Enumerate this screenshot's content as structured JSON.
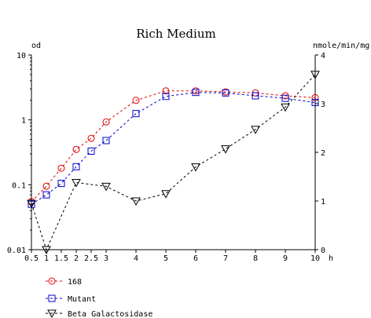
{
  "chart_data": {
    "type": "line",
    "title": "Rich Medium",
    "xlabel": "h",
    "ylabel_left": "od",
    "ylabel_right": "nmole/min/mg",
    "x_ticks": [
      "0.5",
      "1",
      "1.5",
      "2",
      "2.5",
      "3",
      "4",
      "5",
      "6",
      "7",
      "8",
      "9",
      "10"
    ],
    "xlim": [
      0.5,
      10
    ],
    "ylim_left": [
      0.01,
      10
    ],
    "yscale_left": "log",
    "y_ticks_left": [
      "10",
      "1",
      "0.1",
      "0.01"
    ],
    "ylim_right": [
      0,
      4
    ],
    "y_ticks_right": [
      "4",
      "3",
      "2",
      "1",
      "0"
    ],
    "grid": false,
    "legend_position": "bottom-left",
    "series": [
      {
        "name": "168",
        "axis": "left",
        "marker": "circle",
        "color": "#e00000",
        "x": [
          0.5,
          1,
          1.5,
          2,
          2.5,
          3,
          4,
          5,
          6,
          7,
          8,
          9,
          10
        ],
        "y": [
          0.055,
          0.095,
          0.18,
          0.35,
          0.52,
          0.93,
          2.0,
          2.8,
          2.8,
          2.7,
          2.6,
          2.35,
          2.2
        ]
      },
      {
        "name": "Mutant",
        "axis": "left",
        "marker": "square",
        "color": "#0000cc",
        "x": [
          0.5,
          1,
          1.5,
          2,
          2.5,
          3,
          4,
          5,
          6,
          7,
          8,
          9,
          10
        ],
        "y": [
          0.05,
          0.07,
          0.105,
          0.19,
          0.33,
          0.48,
          1.25,
          2.3,
          2.65,
          2.6,
          2.35,
          2.15,
          1.85
        ]
      },
      {
        "name": "Beta Galactosidase",
        "axis": "right",
        "marker": "triangle-down",
        "color": "#000000",
        "x": [
          0.5,
          1,
          2,
          3,
          4,
          5,
          6,
          7,
          8,
          9,
          10
        ],
        "y": [
          0.95,
          0,
          1.38,
          1.3,
          1.0,
          1.15,
          1.7,
          2.07,
          2.47,
          2.93,
          3.6
        ]
      }
    ]
  }
}
